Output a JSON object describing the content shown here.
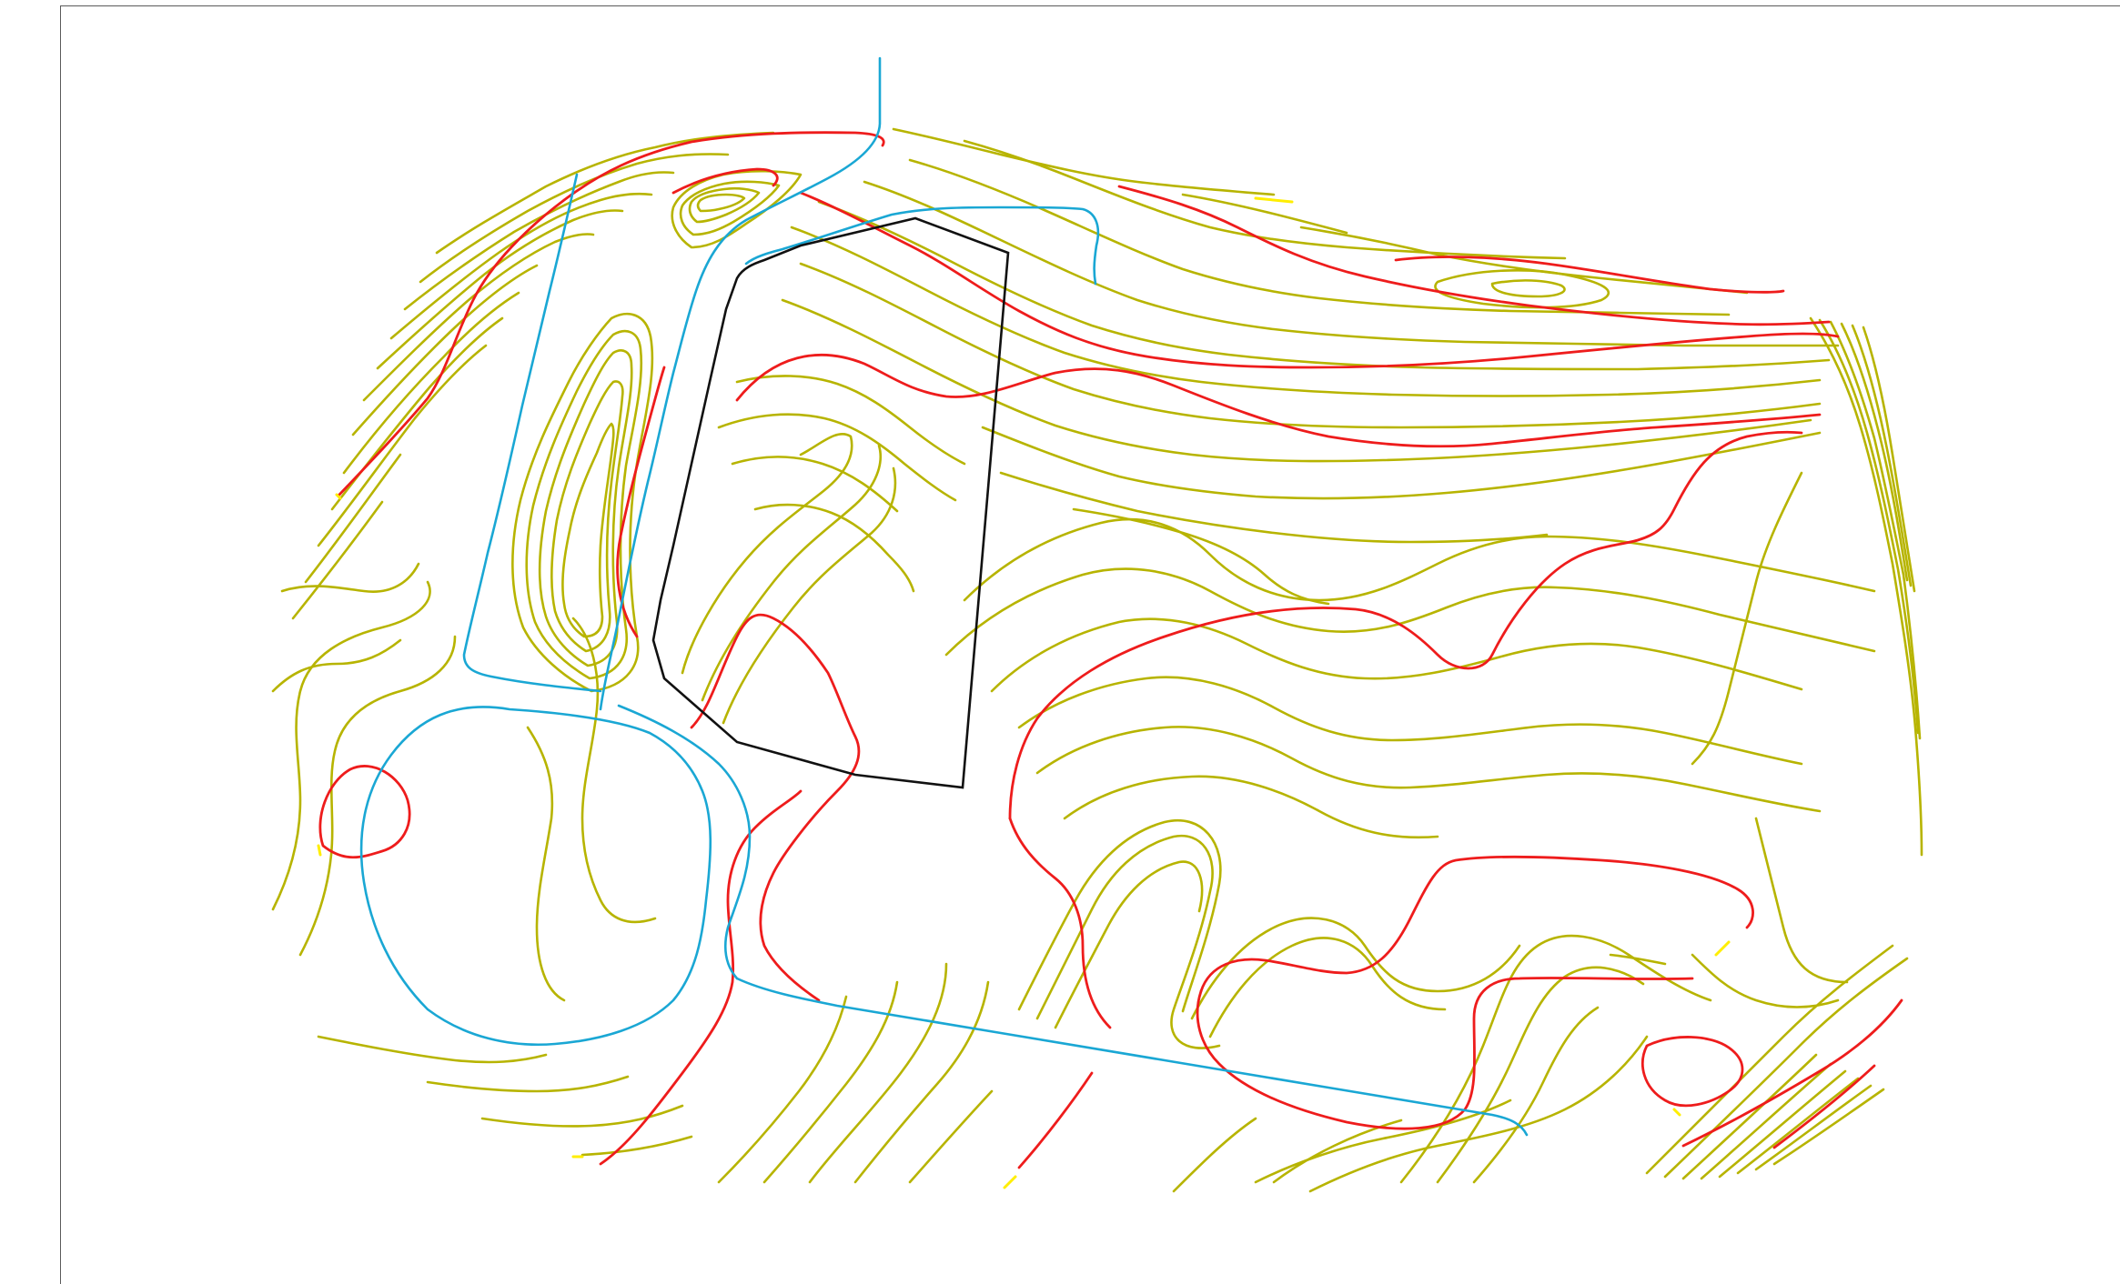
{
  "map": {
    "colors": {
      "background": "#ffffff",
      "minor_contour": "#b7b400",
      "major_contour": "#ee1c1c",
      "road": "#1aa7d4",
      "site_boundary": "#111111",
      "end_marker": "#ffee00"
    },
    "layers": [
      "minor-contours",
      "major-contours",
      "roads",
      "site-boundary",
      "contour-end-markers"
    ]
  }
}
